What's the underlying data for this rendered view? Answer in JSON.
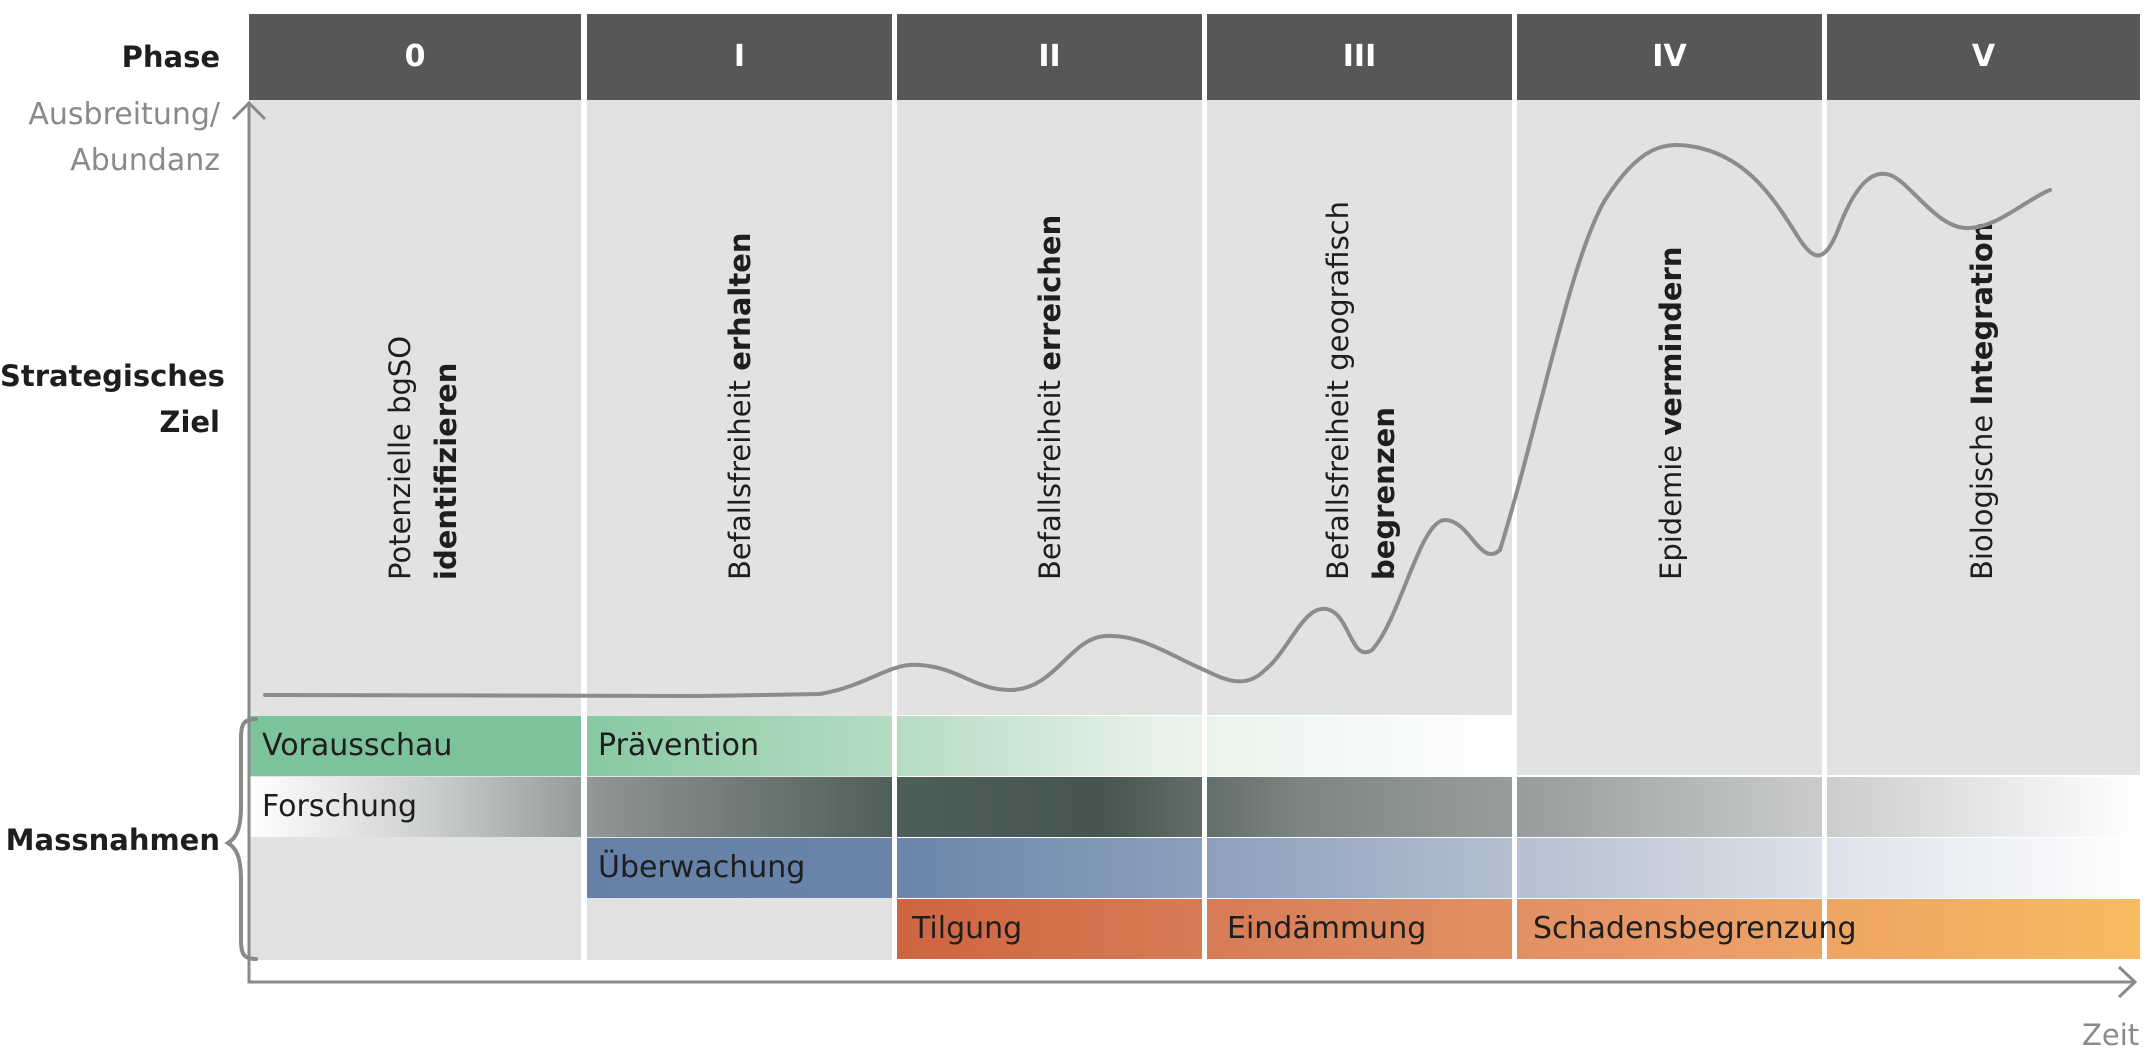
{
  "row_labels": {
    "phase": "Phase",
    "strategic_goal": [
      "Strategisches",
      "Ziel"
    ],
    "measures": "Massnahmen"
  },
  "axis": {
    "y_label": [
      "Ausbreitung/",
      "Abundanz"
    ],
    "x_label": "Zeit"
  },
  "phases": [
    {
      "id": "0",
      "goal_plain": [
        "Potenzielle bgSO"
      ],
      "goal_bold": [
        "identifizieren"
      ]
    },
    {
      "id": "I",
      "goal_plain": [
        "Befallsfreiheit "
      ],
      "goal_bold": [
        "erhalten"
      ]
    },
    {
      "id": "II",
      "goal_plain": [
        "Befallsfreiheit "
      ],
      "goal_bold": [
        "erreichen"
      ]
    },
    {
      "id": "III",
      "goal_plain": [
        "Befallsfreiheit geografisch"
      ],
      "goal_bold": [
        "begrenzen"
      ]
    },
    {
      "id": "IV",
      "goal_plain": [
        "Epidemie "
      ],
      "goal_bold": [
        "vermindern"
      ]
    },
    {
      "id": "V",
      "goal_plain": [
        "Biologische "
      ],
      "goal_bold": [
        "Integration"
      ]
    }
  ],
  "measures": [
    {
      "label": "Vorausschau",
      "color": "#7cc29a"
    },
    {
      "label": "Prävention",
      "color": "#88c9a2"
    },
    {
      "label": "Forschung",
      "color": "#4f5f5a"
    },
    {
      "label": "Überwachung",
      "color": "#6681a8"
    },
    {
      "label": "Tilgung",
      "color": "#d26a44"
    },
    {
      "label": "Eindämmung",
      "color": "#da855d"
    },
    {
      "label": "Schadensbegrenzung",
      "color": "#f8bb5e"
    }
  ],
  "colors": {
    "phase_header": "#575757",
    "column_background": "#e2e2e2",
    "curve": "#8c8c8c",
    "axis": "#8a8a8a"
  }
}
